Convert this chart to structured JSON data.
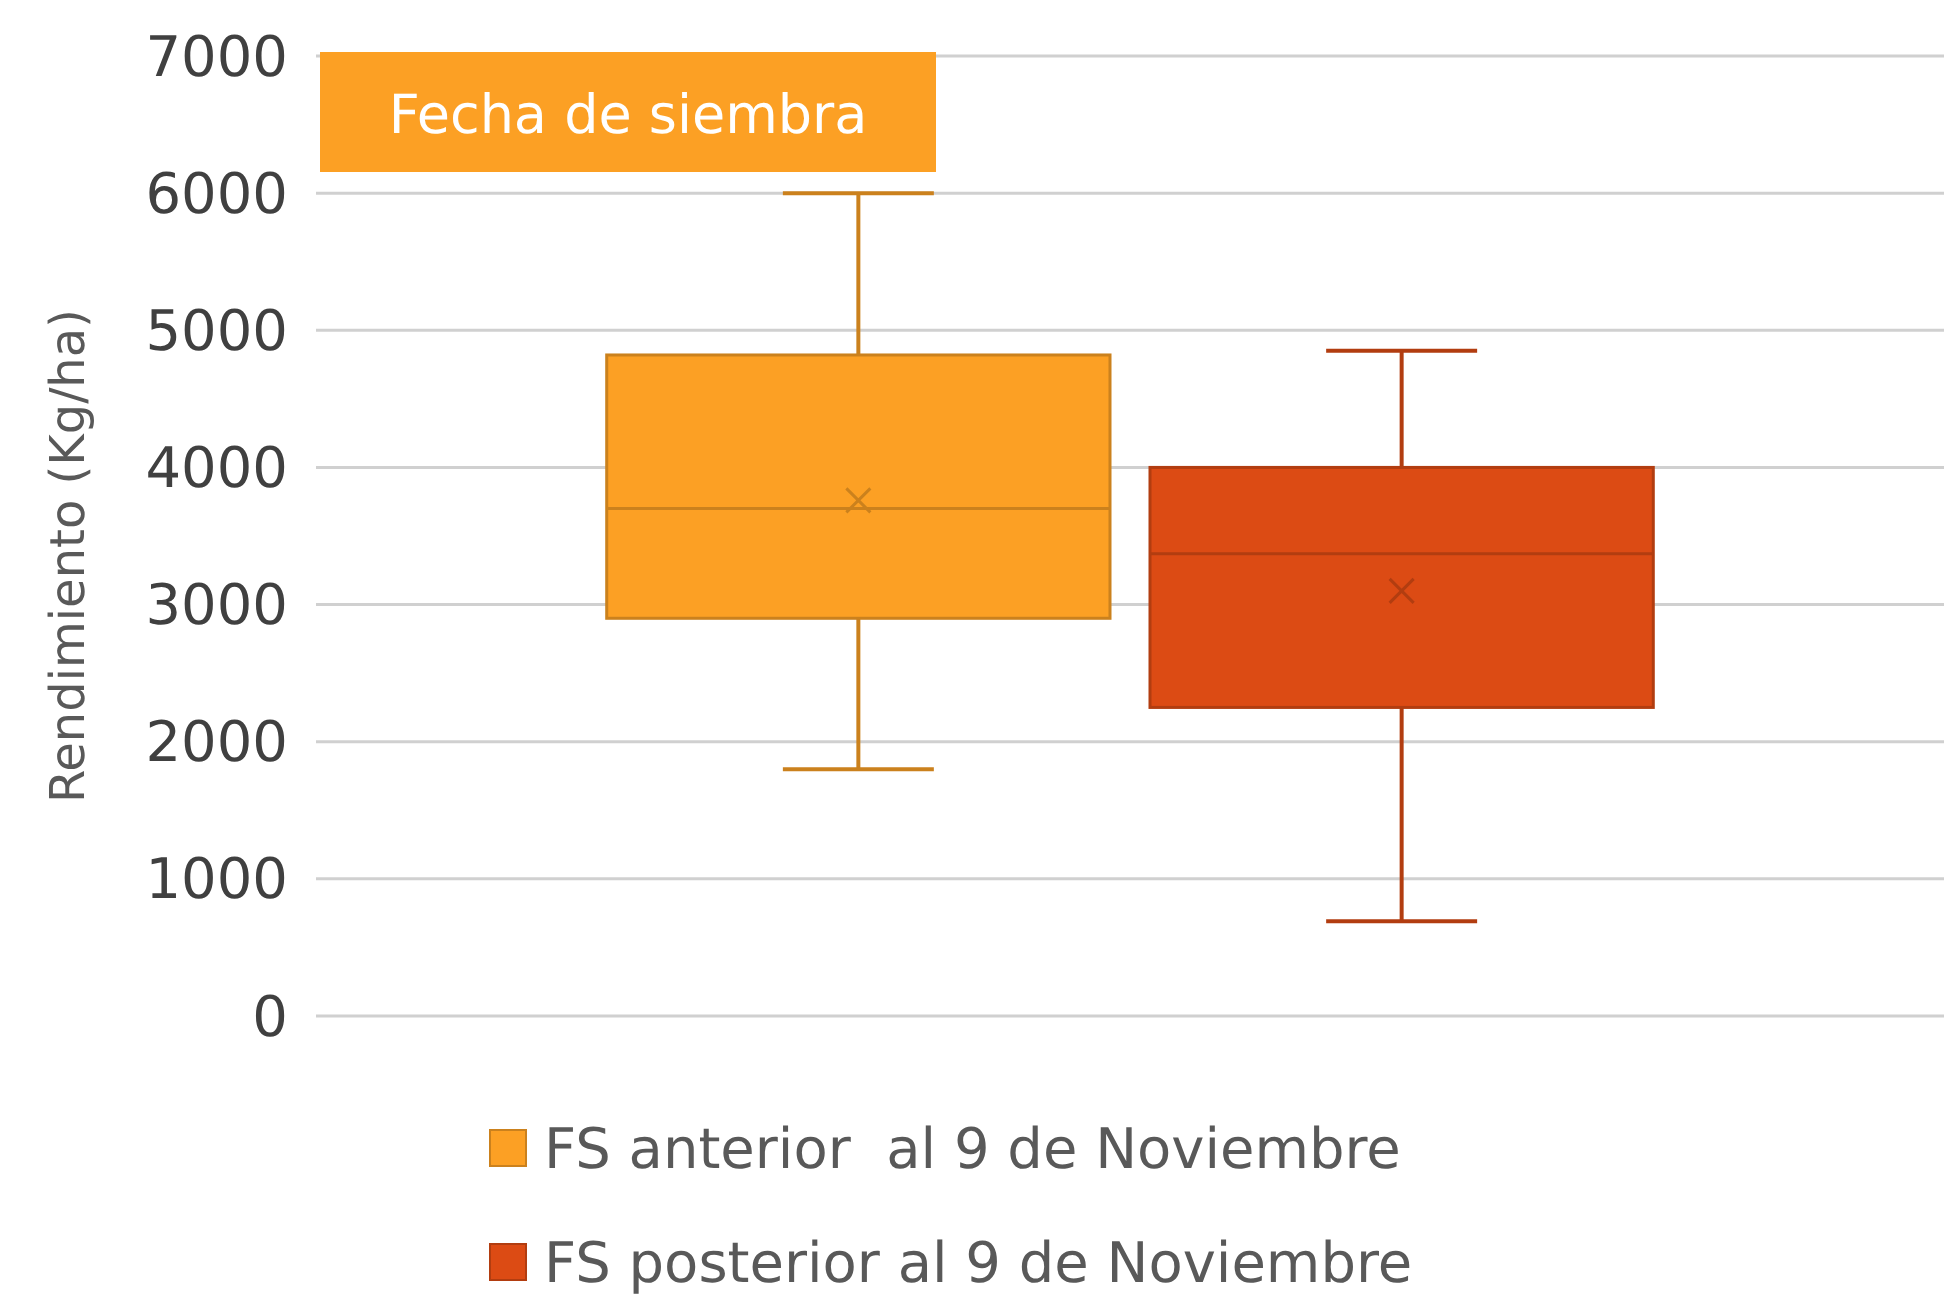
{
  "chart_data": {
    "type": "box",
    "title": "Fecha de siembra",
    "ylabel": "Rendimiento (Kg/ha)",
    "categories": [
      null
    ],
    "ylim": [
      0,
      7000
    ],
    "yticks": [
      0,
      1000,
      2000,
      3000,
      4000,
      5000,
      6000,
      7000
    ],
    "grid": "y",
    "legend": "bottom",
    "series": [
      {
        "name": "FS anterior  al 9 de Noviembre",
        "color": "#fca024",
        "boxes": [
          {
            "low": 1800,
            "q1": 2900,
            "median": 3700,
            "q3": 4820,
            "high": 6000,
            "mean": 3760
          }
        ]
      },
      {
        "name": "FS posterior al 9 de Noviembre",
        "color": "#dc4b14",
        "boxes": [
          {
            "low": 690,
            "q1": 2250,
            "median": 3370,
            "q3": 4000,
            "high": 4850,
            "mean": 3100
          }
        ]
      }
    ]
  }
}
